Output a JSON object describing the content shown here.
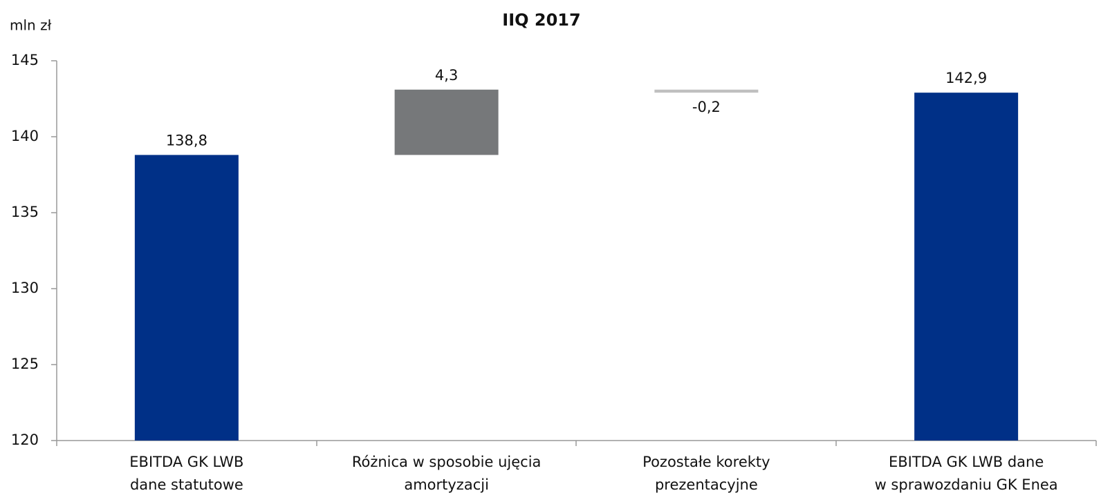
{
  "chart_data": {
    "type": "waterfall",
    "title": "IIQ 2017",
    "y_axis_label": "mln zł",
    "categories": [
      [
        "EBITDA GK LWB",
        "dane statutowe"
      ],
      [
        "Różnica w sposobie ujęcia",
        "amortyzacji"
      ],
      [
        "Pozostałe korekty",
        "prezentacyjne"
      ],
      [
        "EBITDA GK LWB dane",
        "w sprawozdaniu GK Enea"
      ]
    ],
    "values": [
      138.8,
      4.3,
      -0.2,
      142.9
    ],
    "value_labels": [
      "138,8",
      "4,3",
      "-0,2",
      "142,9"
    ],
    "measures": [
      "absolute",
      "relative",
      "relative",
      "absolute"
    ],
    "colors": [
      "#003087",
      "#76787a",
      "#c0c0c0",
      "#003087"
    ],
    "ylim": [
      120,
      145
    ],
    "yticks": [
      120,
      125,
      130,
      135,
      140,
      145
    ],
    "grid": false
  }
}
